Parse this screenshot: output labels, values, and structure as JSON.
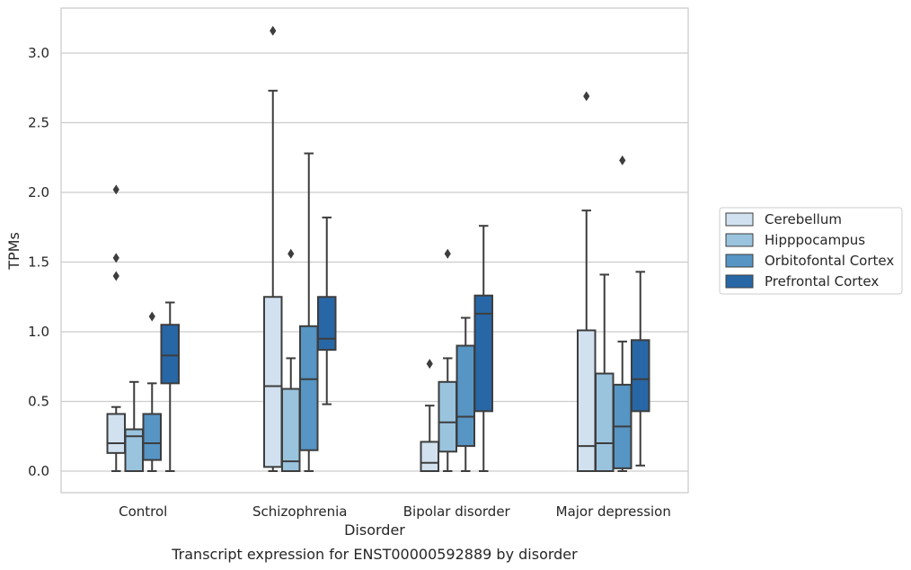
{
  "chart_data": {
    "type": "box",
    "xlabel": "Disorder",
    "ylabel": "TPMs",
    "caption": "Transcript expression for ENST00000592889 by disorder",
    "ylim": [
      -0.15,
      3.32
    ],
    "yticks": [
      "0.0",
      "0.5",
      "1.0",
      "1.5",
      "2.0",
      "2.5",
      "3.0"
    ],
    "grid": true,
    "legend_position": "right",
    "categories": [
      "Control",
      "Schizophrenia",
      "Bipolar disorder",
      "Major depression"
    ],
    "series": [
      {
        "name": "Cerebellum",
        "color": "#d1e1f0",
        "boxes": [
          {
            "whislo": 0.0,
            "q1": 0.13,
            "med": 0.2,
            "q3": 0.41,
            "whishi": 0.46,
            "fliers": [
              1.4,
              1.53,
              2.02
            ]
          },
          {
            "whislo": 0.0,
            "q1": 0.03,
            "med": 0.61,
            "q3": 1.25,
            "whishi": 2.73,
            "fliers": [
              3.16
            ]
          },
          {
            "whislo": 0.0,
            "q1": 0.0,
            "med": 0.06,
            "q3": 0.21,
            "whishi": 0.47,
            "fliers": [
              0.77
            ]
          },
          {
            "whislo": 0.0,
            "q1": 0.0,
            "med": 0.18,
            "q3": 1.01,
            "whishi": 1.87,
            "fliers": [
              2.69
            ]
          }
        ]
      },
      {
        "name": "Hipppocampus",
        "color": "#9ac4de",
        "boxes": [
          {
            "whislo": 0.0,
            "q1": 0.0,
            "med": 0.25,
            "q3": 0.3,
            "whishi": 0.64,
            "fliers": []
          },
          {
            "whislo": 0.0,
            "q1": 0.0,
            "med": 0.07,
            "q3": 0.59,
            "whishi": 0.81,
            "fliers": [
              1.56
            ]
          },
          {
            "whislo": 0.0,
            "q1": 0.14,
            "med": 0.35,
            "q3": 0.64,
            "whishi": 0.81,
            "fliers": [
              1.56
            ]
          },
          {
            "whislo": 0.0,
            "q1": 0.0,
            "med": 0.2,
            "q3": 0.7,
            "whishi": 1.41,
            "fliers": []
          }
        ]
      },
      {
        "name": "Orbitofontal Cortex",
        "color": "#5695c4",
        "boxes": [
          {
            "whislo": 0.0,
            "q1": 0.08,
            "med": 0.2,
            "q3": 0.41,
            "whishi": 0.63,
            "fliers": [
              1.11
            ]
          },
          {
            "whislo": 0.0,
            "q1": 0.15,
            "med": 0.66,
            "q3": 1.04,
            "whishi": 2.28,
            "fliers": []
          },
          {
            "whislo": 0.0,
            "q1": 0.18,
            "med": 0.39,
            "q3": 0.9,
            "whishi": 1.1,
            "fliers": []
          },
          {
            "whislo": 0.0,
            "q1": 0.02,
            "med": 0.32,
            "q3": 0.62,
            "whishi": 0.93,
            "fliers": [
              2.23
            ]
          }
        ]
      },
      {
        "name": "Prefrontal Cortex",
        "color": "#2867a6",
        "boxes": [
          {
            "whislo": 0.0,
            "q1": 0.63,
            "med": 0.83,
            "q3": 1.05,
            "whishi": 1.21,
            "fliers": []
          },
          {
            "whislo": 0.48,
            "q1": 0.87,
            "med": 0.95,
            "q3": 1.25,
            "whishi": 1.82,
            "fliers": []
          },
          {
            "whislo": 0.0,
            "q1": 0.43,
            "med": 1.13,
            "q3": 1.26,
            "whishi": 1.76,
            "fliers": []
          },
          {
            "whislo": 0.04,
            "q1": 0.43,
            "med": 0.66,
            "q3": 0.94,
            "whishi": 1.43,
            "fliers": []
          }
        ]
      }
    ]
  }
}
